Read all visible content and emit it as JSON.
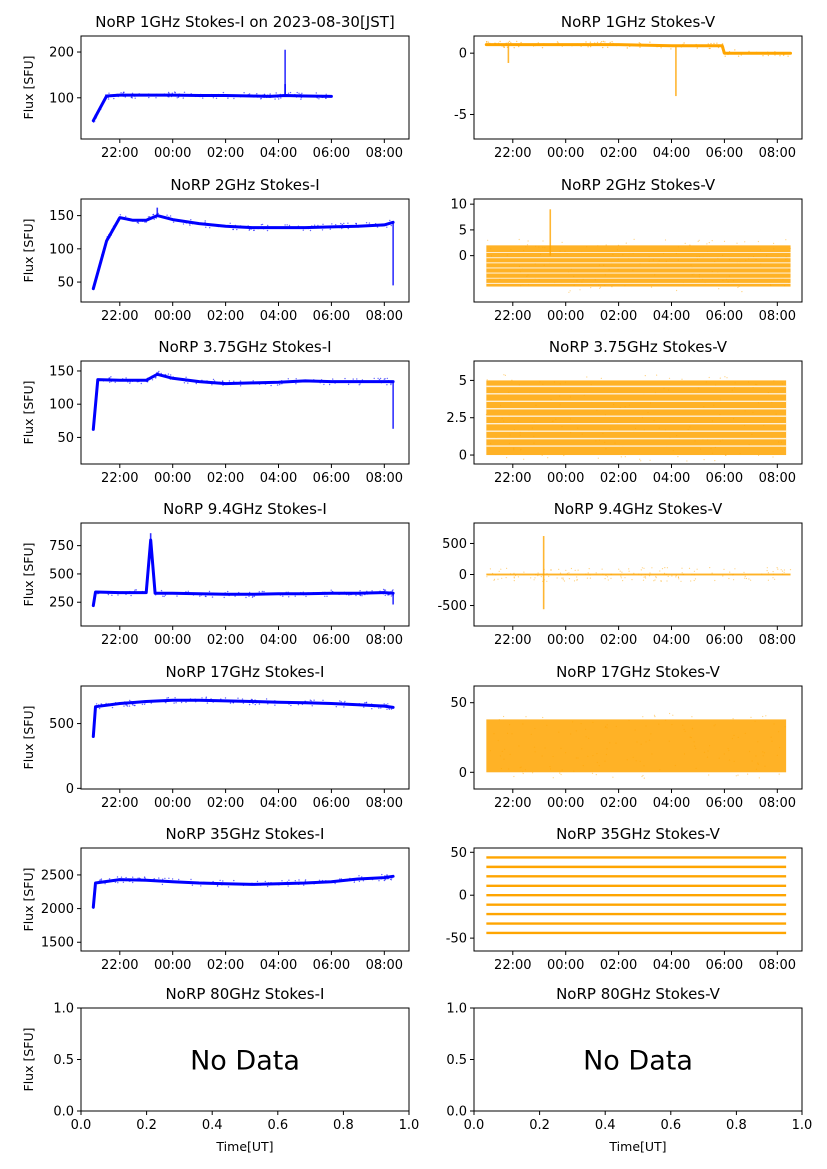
{
  "figure": {
    "xlabel": "Time[UT]",
    "ylabel": "Flux [SFU]",
    "no_data_text": "No Data",
    "time_ticks": [
      "22:00",
      "00:00",
      "02:00",
      "04:00",
      "06:00",
      "08:00"
    ],
    "colors": {
      "stokes_i": "#0000ff",
      "stokes_v": "#ffa500"
    }
  },
  "chart_data": [
    {
      "type": "scatter",
      "title": "NoRP 1GHz Stokes-I on 2023-08-30[JST]",
      "ylabel": "Flux [SFU]",
      "ylim": [
        10,
        235
      ],
      "yticks": [
        100,
        200
      ],
      "xlim": [
        "20:32",
        "08:56"
      ],
      "time_range": [
        "21:00",
        "06:00"
      ],
      "series": [
        {
          "x": [
            "21:00",
            "21:30",
            "22:00",
            "23:00",
            "00:00",
            "01:00",
            "02:00",
            "03:00",
            "03:40",
            "04:15",
            "05:00",
            "06:00"
          ],
          "y": [
            50,
            104,
            106,
            106,
            106,
            105,
            105,
            104,
            103,
            105,
            104,
            103
          ]
        }
      ],
      "spikes": [
        {
          "x": "04:15",
          "y": 205
        },
        {
          "x": "04:15",
          "y": 130
        }
      ]
    },
    {
      "type": "scatter",
      "title": "NoRP 1GHz Stokes-V",
      "ylim": [
        -7,
        1.4
      ],
      "yticks": [
        -5,
        0
      ],
      "xlim": [
        "20:32",
        "08:56"
      ],
      "time_range": [
        "21:00",
        "08:30"
      ],
      "series": [
        {
          "x": [
            "21:00",
            "22:00",
            "00:00",
            "02:00",
            "04:00",
            "05:55",
            "06:00",
            "08:30"
          ],
          "y": [
            0.7,
            0.7,
            0.7,
            0.7,
            0.6,
            0.6,
            0,
            0
          ]
        }
      ],
      "spikes": [
        {
          "x": "04:10",
          "y": -3.5
        },
        {
          "x": "21:50",
          "y": -0.8
        }
      ]
    },
    {
      "type": "scatter",
      "title": "NoRP 2GHz Stokes-I",
      "ylim": [
        20,
        175
      ],
      "yticks": [
        50,
        100,
        150
      ],
      "xlim": [
        "20:32",
        "08:56"
      ],
      "time_range": [
        "21:00",
        "08:20"
      ],
      "series": [
        {
          "x": [
            "21:00",
            "21:30",
            "22:00",
            "22:30",
            "23:00",
            "23:25",
            "00:00",
            "01:00",
            "02:00",
            "03:00",
            "04:00",
            "05:00",
            "06:00",
            "07:00",
            "08:00",
            "08:20"
          ],
          "y": [
            40,
            112,
            147,
            143,
            143,
            150,
            144,
            138,
            134,
            132,
            132,
            132,
            133,
            134,
            136,
            140
          ]
        }
      ],
      "spikes": [
        {
          "x": "23:25",
          "y": 162
        },
        {
          "x": "08:20",
          "y": 45
        }
      ]
    },
    {
      "type": "scatter",
      "title": "NoRP 2GHz Stokes-V",
      "ylim": [
        -9,
        11
      ],
      "yticks": [
        0,
        5,
        10
      ],
      "xlim": [
        "20:32",
        "08:56"
      ],
      "time_range": [
        "21:00",
        "08:30"
      ],
      "band": [
        -6,
        2
      ],
      "spikes": [
        {
          "x": "23:25",
          "y": 9
        }
      ]
    },
    {
      "type": "scatter",
      "title": "NoRP 3.75GHz Stokes-I",
      "ylim": [
        10,
        165
      ],
      "yticks": [
        50,
        100,
        150
      ],
      "xlim": [
        "20:32",
        "08:56"
      ],
      "time_range": [
        "21:00",
        "08:20"
      ],
      "series": [
        {
          "x": [
            "21:00",
            "21:10",
            "22:00",
            "23:00",
            "23:25",
            "00:00",
            "01:00",
            "02:00",
            "03:00",
            "04:00",
            "05:00",
            "06:00",
            "07:00",
            "08:00",
            "08:20"
          ],
          "y": [
            62,
            137,
            136,
            136,
            145,
            139,
            134,
            131,
            132,
            133,
            135,
            134,
            134,
            134,
            134
          ]
        }
      ],
      "spikes": [
        {
          "x": "08:20",
          "y": 63
        }
      ]
    },
    {
      "type": "scatter",
      "title": "NoRP 3.75GHz Stokes-V",
      "ylim": [
        -0.6,
        6.3
      ],
      "yticks": [
        0.0,
        2.5,
        5.0
      ],
      "xlim": [
        "20:32",
        "08:56"
      ],
      "time_range": [
        "21:00",
        "08:20"
      ],
      "band": [
        0,
        5.0
      ]
    },
    {
      "type": "scatter",
      "title": "NoRP 9.4GHz Stokes-I",
      "ylim": [
        40,
        950
      ],
      "yticks": [
        250,
        500,
        750
      ],
      "xlim": [
        "20:32",
        "08:56"
      ],
      "time_range": [
        "21:00",
        "08:20"
      ],
      "series": [
        {
          "x": [
            "21:00",
            "21:05",
            "22:00",
            "23:00",
            "23:10",
            "23:20",
            "00:00",
            "01:00",
            "02:00",
            "03:00",
            "04:00",
            "05:00",
            "06:00",
            "07:00",
            "08:00",
            "08:20"
          ],
          "y": [
            220,
            340,
            335,
            335,
            800,
            330,
            330,
            325,
            320,
            320,
            325,
            325,
            330,
            330,
            335,
            330
          ]
        }
      ],
      "spikes": [
        {
          "x": "23:10",
          "y": 860
        },
        {
          "x": "08:20",
          "y": 230
        }
      ]
    },
    {
      "type": "scatter",
      "title": "NoRP 9.4GHz Stokes-V",
      "ylim": [
        -830,
        830
      ],
      "yticks": [
        -500,
        0,
        500
      ],
      "xlim": [
        "20:32",
        "08:56"
      ],
      "time_range": [
        "21:00",
        "08:30"
      ],
      "band": [
        -15,
        15
      ],
      "spikes": [
        {
          "x": "23:10",
          "y": 620
        },
        {
          "x": "23:10",
          "y": -560
        }
      ]
    },
    {
      "type": "scatter",
      "title": "NoRP 17GHz Stokes-I",
      "ylim": [
        -5,
        790
      ],
      "yticks": [
        0,
        500
      ],
      "xlim": [
        "20:32",
        "08:56"
      ],
      "time_range": [
        "21:00",
        "08:20"
      ],
      "series": [
        {
          "x": [
            "21:00",
            "21:05",
            "22:00",
            "23:00",
            "00:00",
            "01:00",
            "02:00",
            "03:00",
            "04:00",
            "05:00",
            "06:00",
            "07:00",
            "08:00",
            "08:20"
          ],
          "y": [
            400,
            630,
            655,
            670,
            680,
            680,
            675,
            670,
            665,
            660,
            655,
            645,
            635,
            625
          ]
        }
      ]
    },
    {
      "type": "scatter",
      "title": "NoRP 17GHz Stokes-V",
      "ylim": [
        -12,
        62
      ],
      "yticks": [
        0,
        50
      ],
      "xlim": [
        "20:32",
        "08:56"
      ],
      "time_range": [
        "21:00",
        "08:20"
      ],
      "band": [
        0,
        38
      ]
    },
    {
      "type": "scatter",
      "title": "NoRP 35GHz Stokes-I",
      "ylim": [
        1370,
        2900
      ],
      "yticks": [
        1500,
        2000,
        2500
      ],
      "xlim": [
        "20:32",
        "08:56"
      ],
      "time_range": [
        "21:00",
        "08:20"
      ],
      "series": [
        {
          "x": [
            "21:00",
            "21:05",
            "22:00",
            "23:00",
            "00:00",
            "01:00",
            "02:00",
            "03:00",
            "04:00",
            "05:00",
            "06:00",
            "07:00",
            "08:00",
            "08:20"
          ],
          "y": [
            2020,
            2380,
            2430,
            2420,
            2400,
            2380,
            2370,
            2360,
            2370,
            2380,
            2400,
            2440,
            2460,
            2480
          ]
        }
      ]
    },
    {
      "type": "scatter",
      "title": "NoRP 35GHz Stokes-V",
      "ylim": [
        -65,
        55
      ],
      "yticks": [
        -50,
        0,
        50
      ],
      "xlim": [
        "20:32",
        "08:56"
      ],
      "time_range": [
        "21:00",
        "08:20"
      ],
      "levels": [
        -44,
        -33,
        -22,
        -11,
        0,
        11,
        22,
        33,
        44
      ]
    },
    {
      "type": "table",
      "title": "NoRP 80GHz Stokes-I",
      "ylim": [
        0,
        1
      ],
      "xlim": [
        0,
        1
      ],
      "ticks": [
        "0.0",
        "0.2",
        "0.4",
        "0.6",
        "0.8",
        "1.0"
      ],
      "yticks": [
        "0.0",
        "0.5",
        "1.0"
      ],
      "no_data": true
    },
    {
      "type": "table",
      "title": "NoRP 80GHz Stokes-V",
      "ylim": [
        0,
        1
      ],
      "xlim": [
        0,
        1
      ],
      "ticks": [
        "0.0",
        "0.2",
        "0.4",
        "0.6",
        "0.8",
        "1.0"
      ],
      "yticks": [
        "0.0",
        "0.5",
        "1.0"
      ],
      "no_data": true
    }
  ]
}
